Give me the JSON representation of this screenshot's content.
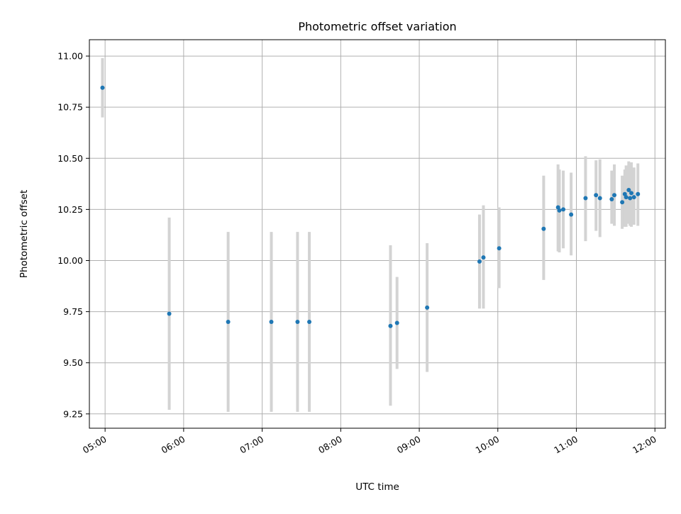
{
  "chart_data": {
    "type": "scatter",
    "title": "Photometric offset variation",
    "xlabel": "UTC time",
    "ylabel": "Photometric offset",
    "grid": true,
    "legend": "none",
    "x_axis_format": "HH:MM",
    "xlim": [
      "04:48",
      "12:08"
    ],
    "ylim": [
      9.18,
      11.08
    ],
    "x_ticks": [
      "05:00",
      "06:00",
      "07:00",
      "08:00",
      "09:00",
      "10:00",
      "11:00",
      "12:00"
    ],
    "y_ticks": [
      "9.25",
      "9.50",
      "9.75",
      "10.00",
      "10.25",
      "10.50",
      "10.75",
      "11.00"
    ],
    "colors": {
      "marker": "#1f77b4",
      "errorbar": "#d3d3d3",
      "grid": "#b0b0b0"
    },
    "points": [
      {
        "time": "04:58",
        "y": 10.845,
        "y_low": 10.7,
        "y_high": 10.99
      },
      {
        "time": "05:49",
        "y": 9.74,
        "y_low": 9.27,
        "y_high": 10.21
      },
      {
        "time": "06:34",
        "y": 9.7,
        "y_low": 9.26,
        "y_high": 10.14
      },
      {
        "time": "07:07",
        "y": 9.7,
        "y_low": 9.26,
        "y_high": 10.14
      },
      {
        "time": "07:27",
        "y": 9.7,
        "y_low": 9.26,
        "y_high": 10.14
      },
      {
        "time": "07:36",
        "y": 9.7,
        "y_low": 9.26,
        "y_high": 10.14
      },
      {
        "time": "08:38",
        "y": 9.68,
        "y_low": 9.29,
        "y_high": 10.075
      },
      {
        "time": "08:43",
        "y": 9.695,
        "y_low": 9.47,
        "y_high": 9.92
      },
      {
        "time": "09:06",
        "y": 9.77,
        "y_low": 9.455,
        "y_high": 10.085
      },
      {
        "time": "09:46",
        "y": 9.995,
        "y_low": 9.765,
        "y_high": 10.225
      },
      {
        "time": "09:49",
        "y": 10.015,
        "y_low": 9.765,
        "y_high": 10.27
      },
      {
        "time": "10:01",
        "y": 10.06,
        "y_low": 9.865,
        "y_high": 10.26
      },
      {
        "time": "10:35",
        "y": 10.155,
        "y_low": 9.905,
        "y_high": 10.415
      },
      {
        "time": "10:46",
        "y": 10.26,
        "y_low": 10.045,
        "y_high": 10.47
      },
      {
        "time": "10:47",
        "y": 10.245,
        "y_low": 10.04,
        "y_high": 10.445
      },
      {
        "time": "10:50",
        "y": 10.25,
        "y_low": 10.06,
        "y_high": 10.44
      },
      {
        "time": "10:56",
        "y": 10.225,
        "y_low": 10.025,
        "y_high": 10.43
      },
      {
        "time": "11:07",
        "y": 10.305,
        "y_low": 10.095,
        "y_high": 10.51
      },
      {
        "time": "11:15",
        "y": 10.32,
        "y_low": 10.145,
        "y_high": 10.49
      },
      {
        "time": "11:18",
        "y": 10.305,
        "y_low": 10.115,
        "y_high": 10.495
      },
      {
        "time": "11:27",
        "y": 10.3,
        "y_low": 10.18,
        "y_high": 10.44
      },
      {
        "time": "11:29",
        "y": 10.32,
        "y_low": 10.17,
        "y_high": 10.47
      },
      {
        "time": "11:35",
        "y": 10.285,
        "y_low": 10.155,
        "y_high": 10.415
      },
      {
        "time": "11:37",
        "y": 10.325,
        "y_low": 10.165,
        "y_high": 10.445
      },
      {
        "time": "11:38",
        "y": 10.31,
        "y_low": 10.165,
        "y_high": 10.465
      },
      {
        "time": "11:40",
        "y": 10.345,
        "y_low": 10.18,
        "y_high": 10.485
      },
      {
        "time": "11:41",
        "y": 10.305,
        "y_low": 10.17,
        "y_high": 10.455
      },
      {
        "time": "11:42",
        "y": 10.33,
        "y_low": 10.165,
        "y_high": 10.48
      },
      {
        "time": "11:44",
        "y": 10.31,
        "y_low": 10.175,
        "y_high": 10.455
      },
      {
        "time": "11:47",
        "y": 10.325,
        "y_low": 10.17,
        "y_high": 10.475
      }
    ]
  }
}
